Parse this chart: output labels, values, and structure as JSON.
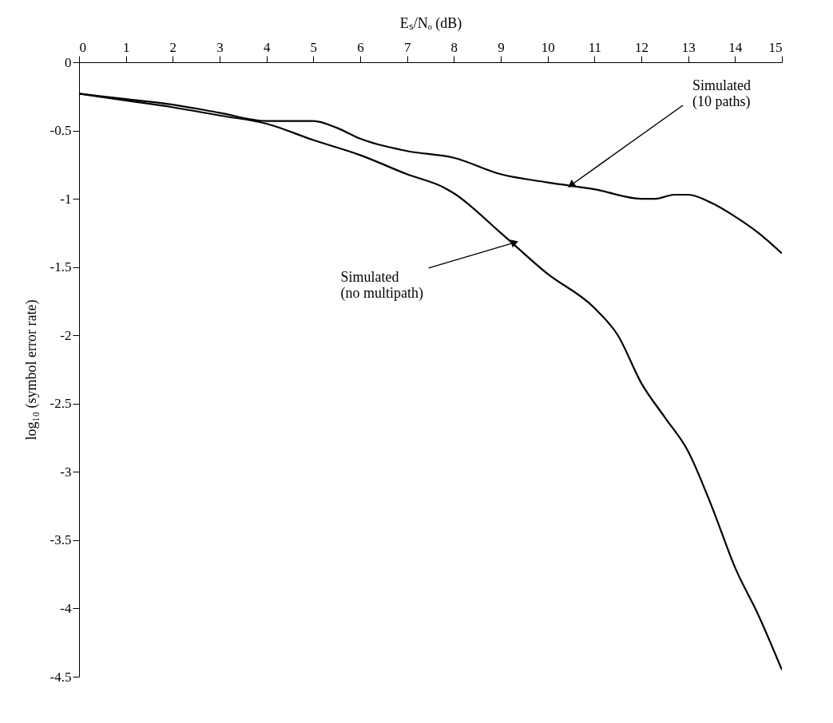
{
  "chart_data": {
    "type": "line",
    "xlabel": "Eₛ/Nₒ (dB)",
    "ylabel": "log₁₀ (symbol error rate)",
    "xlim": [
      0,
      15
    ],
    "ylim": [
      -4.5,
      0
    ],
    "xticks": [
      0,
      1,
      2,
      3,
      4,
      5,
      6,
      7,
      8,
      9,
      10,
      11,
      12,
      13,
      14,
      15
    ],
    "yticks": [
      0,
      -0.5,
      -1,
      -1.5,
      -2,
      -2.5,
      -3,
      -3.5,
      -4,
      -4.5
    ],
    "grid": false,
    "line_style": "solid",
    "marker": "none",
    "series": [
      {
        "color": "#000000",
        "x": [
          0,
          1,
          2,
          3,
          4,
          4.5,
          5,
          5.5,
          6,
          7,
          8,
          9,
          10,
          11,
          12,
          12.3,
          12.7,
          13,
          13.5,
          14,
          14.5,
          15
        ],
        "values": [
          -0.23,
          -0.27,
          -0.31,
          -0.37,
          -0.43,
          -0.43,
          -0.43,
          -0.48,
          -0.56,
          -0.65,
          -0.7,
          -0.82,
          -0.88,
          -0.93,
          -1.0,
          -1.0,
          -0.97,
          -0.97,
          -1.03,
          -1.13,
          -1.25,
          -1.4
        ]
      },
      {
        "color": "#000000",
        "x": [
          0,
          1,
          2,
          3,
          4,
          5,
          6,
          7,
          7.8,
          8,
          9,
          10,
          11,
          11.5,
          12,
          12.5,
          13,
          13.5,
          14,
          14.5,
          15
        ],
        "values": [
          -0.23,
          -0.28,
          -0.33,
          -0.39,
          -0.45,
          -0.57,
          -0.68,
          -0.82,
          -0.92,
          -0.96,
          -1.25,
          -1.55,
          -1.8,
          -2.0,
          -2.35,
          -2.6,
          -2.85,
          -3.25,
          -3.7,
          -4.05,
          -4.45
        ]
      }
    ],
    "annotations": [
      {
        "text": "Simulated\n(10 paths)",
        "x": 10.5,
        "y": -0.9
      },
      {
        "text": "Simulated\n(no multipath)",
        "x": 9.3,
        "y": -1.32
      }
    ]
  }
}
